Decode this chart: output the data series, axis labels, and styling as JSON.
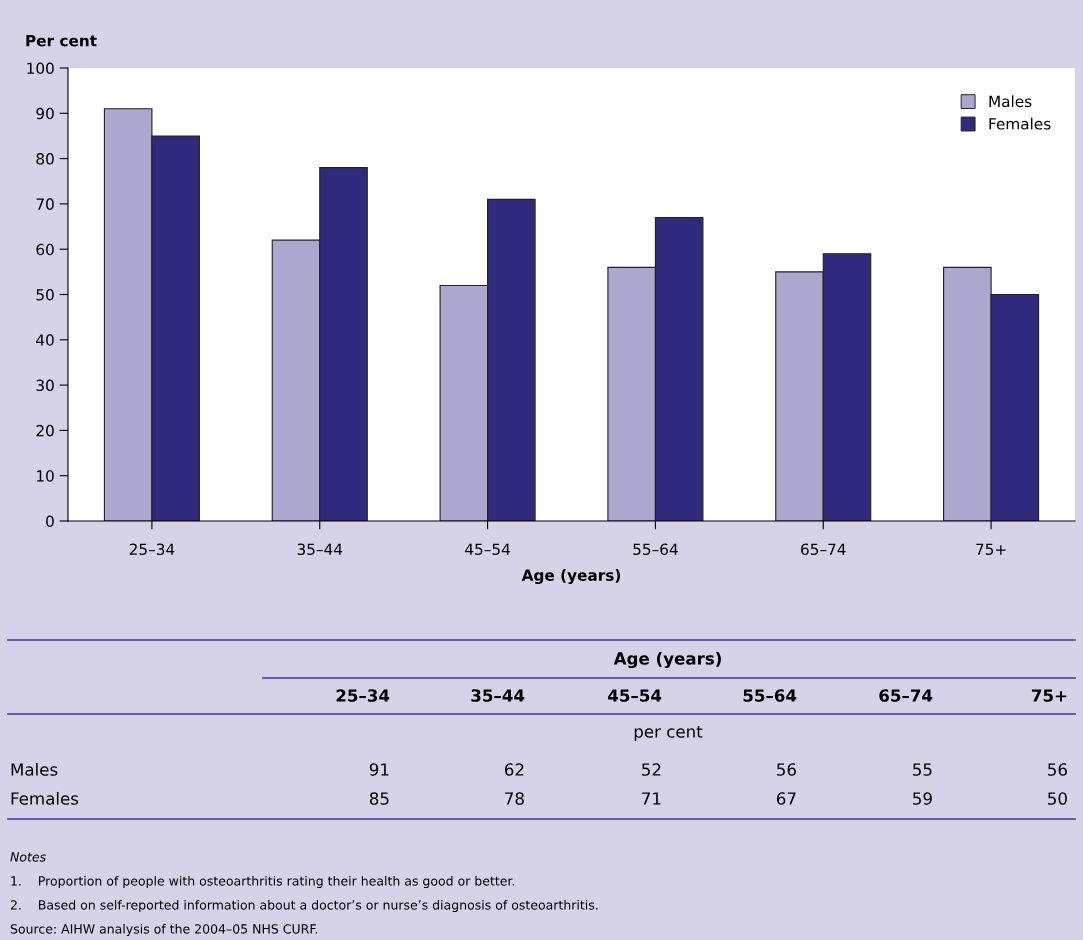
{
  "chart_data": [
    {
      "type": "bar",
      "ylabel": "Per cent",
      "xlabel": "Age (years)",
      "categories": [
        "25–34",
        "35–44",
        "45–54",
        "55–64",
        "65–74",
        "75+"
      ],
      "series": [
        {
          "name": "Males",
          "color": "#aba7cf",
          "values": [
            91,
            62,
            52,
            56,
            55,
            56
          ]
        },
        {
          "name": "Females",
          "color": "#2f2a7c",
          "values": [
            85,
            78,
            71,
            67,
            59,
            50
          ]
        }
      ],
      "ylim": [
        0,
        100
      ],
      "yticks": [
        0,
        10,
        20,
        30,
        40,
        50,
        60,
        70,
        80,
        90,
        100
      ],
      "grid": false,
      "legend": "top right"
    },
    {
      "type": "other",
      "title": "Age (years)",
      "subtitle": "per cent",
      "categories": [
        "25–34",
        "35–44",
        "45–54",
        "55–64",
        "65–74",
        "75+"
      ],
      "series": [
        {
          "name": "Males",
          "values": [
            91,
            62,
            52,
            56,
            55,
            56
          ]
        },
        {
          "name": "Females",
          "values": [
            85,
            78,
            71,
            67,
            59,
            50
          ]
        }
      ],
      "data_labels": true,
      "annotations": [
        "Notes",
        "1.    Proportion of people with osteoarthritis rating their health as good or better.",
        "2.    Based on self-reported information about a doctor’s or nurse’s diagnosis of osteoarthritis.",
        "Source: AIHW analysis of the 2004–05 NHS CURF."
      ]
    }
  ]
}
